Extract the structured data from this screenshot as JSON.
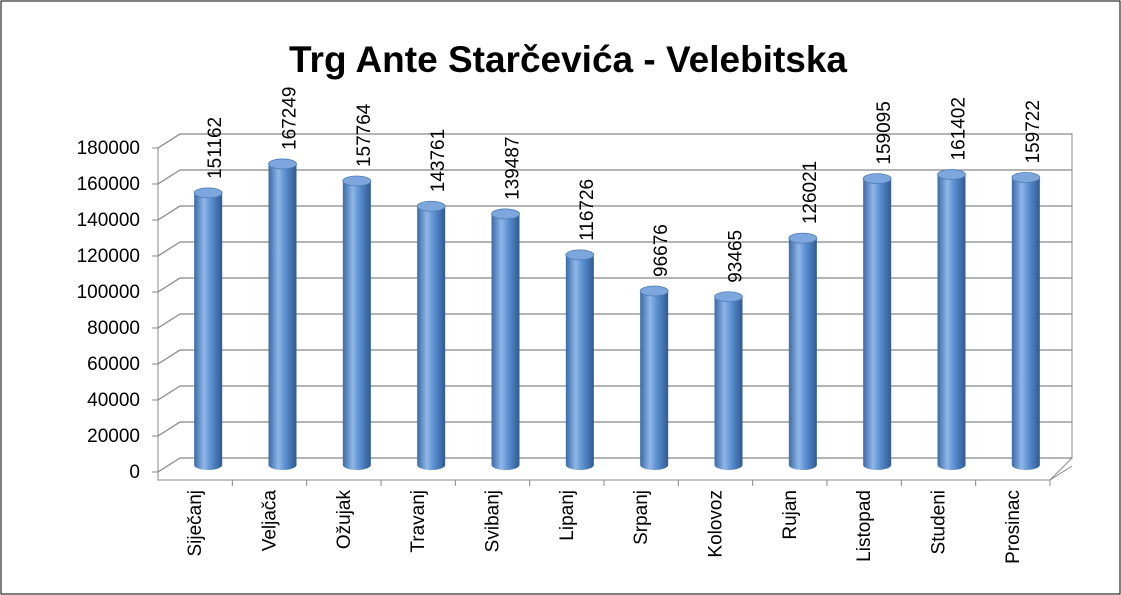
{
  "chart_data": {
    "type": "bar",
    "title": "Trg Ante Starčevića - Velebitska",
    "categories": [
      "Siječanj",
      "Veljača",
      "Ožujak",
      "Travanj",
      "Svibanj",
      "Lipanj",
      "Srpanj",
      "Kolovoz",
      "Rujan",
      "Listopad",
      "Studeni",
      "Prosinac"
    ],
    "values": [
      151162,
      167249,
      157764,
      143761,
      139487,
      116726,
      96676,
      93465,
      126021,
      159095,
      161402,
      159722
    ],
    "color": "#4f81bd",
    "ylim": [
      0,
      180000
    ],
    "yticks": [
      0,
      20000,
      40000,
      60000,
      80000,
      100000,
      120000,
      140000,
      160000,
      180000
    ],
    "grid": true
  }
}
